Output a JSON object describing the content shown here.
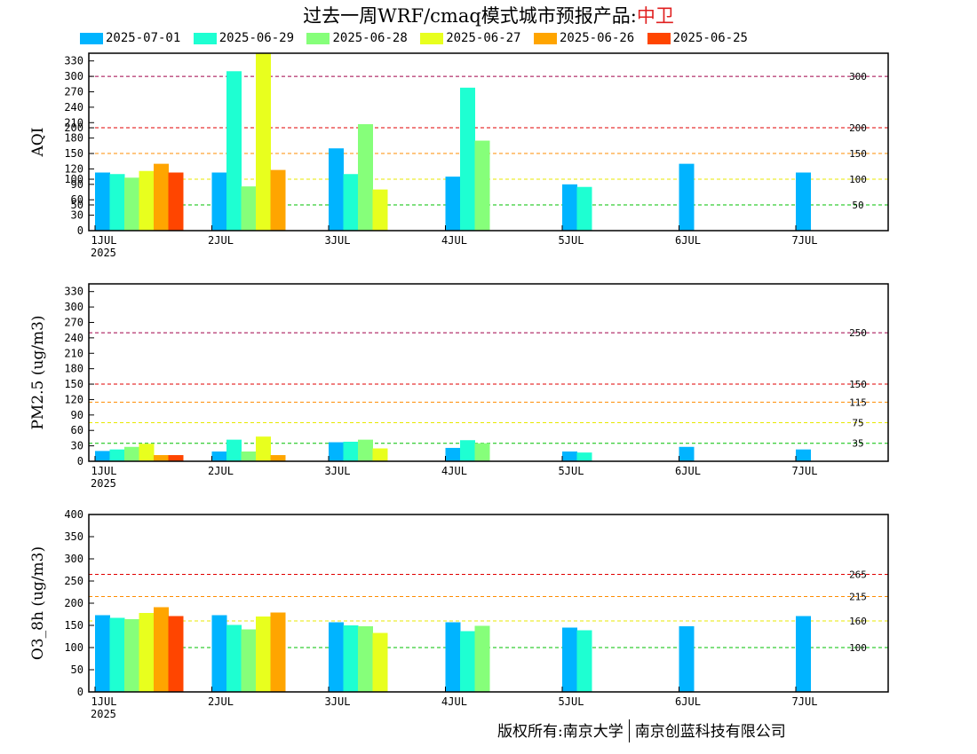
{
  "title": {
    "main": "过去一周WRF/cmaq模式城市预报产品:",
    "city": "中卫"
  },
  "footer": {
    "left": "版权所有:南京大学",
    "right": "南京创蓝科技有限公司"
  },
  "legend": [
    {
      "label": "2025-07-01",
      "color": "#00b4ff"
    },
    {
      "label": "2025-06-29",
      "color": "#1effd2"
    },
    {
      "label": "2025-06-28",
      "color": "#86ff7a"
    },
    {
      "label": "2025-06-27",
      "color": "#e8ff1e"
    },
    {
      "label": "2025-06-26",
      "color": "#ffa500"
    },
    {
      "label": "2025-06-25",
      "color": "#ff4500"
    }
  ],
  "chart_data": [
    {
      "type": "bar",
      "ylabel": "AQI",
      "ylim": [
        0,
        345
      ],
      "yticks": [
        0,
        30,
        50,
        60,
        90,
        100,
        120,
        150,
        180,
        200,
        210,
        240,
        270,
        300,
        330
      ],
      "xticks": [
        "1JUL",
        "2JUL",
        "3JUL",
        "4JUL",
        "5JUL",
        "6JUL",
        "7JUL"
      ],
      "xsub": "2025",
      "thresholds": [
        {
          "value": 50,
          "label": "50",
          "color": "#00c000"
        },
        {
          "value": 100,
          "label": "100",
          "color": "#e8e800"
        },
        {
          "value": 150,
          "label": "150",
          "color": "#ff8c00"
        },
        {
          "value": 200,
          "label": "200",
          "color": "#e00000"
        },
        {
          "value": 300,
          "label": "300",
          "color": "#a0004a"
        }
      ],
      "series": [
        {
          "name": "2025-07-01",
          "values": [
            113,
            113,
            160,
            105,
            90,
            130,
            113
          ]
        },
        {
          "name": "2025-06-29",
          "values": [
            110,
            310,
            110,
            278,
            85,
            null,
            null
          ]
        },
        {
          "name": "2025-06-28",
          "values": [
            103,
            86,
            207,
            175,
            null,
            null,
            null
          ]
        },
        {
          "name": "2025-06-27",
          "values": [
            116,
            345,
            80,
            null,
            null,
            null,
            null
          ]
        },
        {
          "name": "2025-06-26",
          "values": [
            130,
            118,
            null,
            null,
            null,
            null,
            null
          ]
        },
        {
          "name": "2025-06-25",
          "values": [
            113,
            null,
            null,
            null,
            null,
            null,
            null
          ]
        }
      ]
    },
    {
      "type": "bar",
      "ylabel": "PM2.5 (ug/m3)",
      "ylim": [
        0,
        345
      ],
      "yticks": [
        0,
        30,
        60,
        90,
        120,
        150,
        180,
        210,
        240,
        270,
        300,
        330
      ],
      "xticks": [
        "1JUL",
        "2JUL",
        "3JUL",
        "4JUL",
        "5JUL",
        "6JUL",
        "7JUL"
      ],
      "xsub": "2025",
      "thresholds": [
        {
          "value": 35,
          "label": "35",
          "color": "#00c000"
        },
        {
          "value": 75,
          "label": "75",
          "color": "#e8e800"
        },
        {
          "value": 115,
          "label": "115",
          "color": "#ff8c00"
        },
        {
          "value": 150,
          "label": "150",
          "color": "#e00000"
        },
        {
          "value": 250,
          "label": "250",
          "color": "#a0004a"
        }
      ],
      "series": [
        {
          "name": "2025-07-01",
          "values": [
            20,
            19,
            37,
            26,
            19,
            28,
            23
          ]
        },
        {
          "name": "2025-06-29",
          "values": [
            23,
            42,
            38,
            41,
            17,
            null,
            null
          ]
        },
        {
          "name": "2025-06-28",
          "values": [
            28,
            19,
            42,
            35,
            null,
            null,
            null
          ]
        },
        {
          "name": "2025-06-27",
          "values": [
            34,
            48,
            25,
            null,
            null,
            null,
            null
          ]
        },
        {
          "name": "2025-06-26",
          "values": [
            12,
            12,
            null,
            null,
            null,
            null,
            null
          ]
        },
        {
          "name": "2025-06-25",
          "values": [
            12,
            null,
            null,
            null,
            null,
            null,
            null
          ]
        }
      ]
    },
    {
      "type": "bar",
      "ylabel": "O3_8h (ug/m3)",
      "ylim": [
        0,
        400
      ],
      "yticks": [
        0,
        50,
        100,
        150,
        200,
        250,
        300,
        350,
        400
      ],
      "xticks": [
        "1JUL",
        "2JUL",
        "3JUL",
        "4JUL",
        "5JUL",
        "6JUL",
        "7JUL"
      ],
      "xsub": "2025",
      "thresholds": [
        {
          "value": 100,
          "label": "100",
          "color": "#00c000"
        },
        {
          "value": 160,
          "label": "160",
          "color": "#e8e800"
        },
        {
          "value": 215,
          "label": "215",
          "color": "#ff8c00"
        },
        {
          "value": 265,
          "label": "265",
          "color": "#e00000"
        }
      ],
      "series": [
        {
          "name": "2025-07-01",
          "values": [
            173,
            173,
            157,
            157,
            145,
            148,
            171
          ]
        },
        {
          "name": "2025-06-29",
          "values": [
            167,
            151,
            150,
            137,
            139,
            null,
            null
          ]
        },
        {
          "name": "2025-06-28",
          "values": [
            164,
            141,
            148,
            149,
            null,
            null,
            null
          ]
        },
        {
          "name": "2025-06-27",
          "values": [
            178,
            170,
            133,
            null,
            null,
            null,
            null
          ]
        },
        {
          "name": "2025-06-26",
          "values": [
            191,
            179,
            null,
            null,
            null,
            null,
            null
          ]
        },
        {
          "name": "2025-06-25",
          "values": [
            171,
            null,
            null,
            null,
            null,
            null,
            null
          ]
        }
      ]
    }
  ]
}
